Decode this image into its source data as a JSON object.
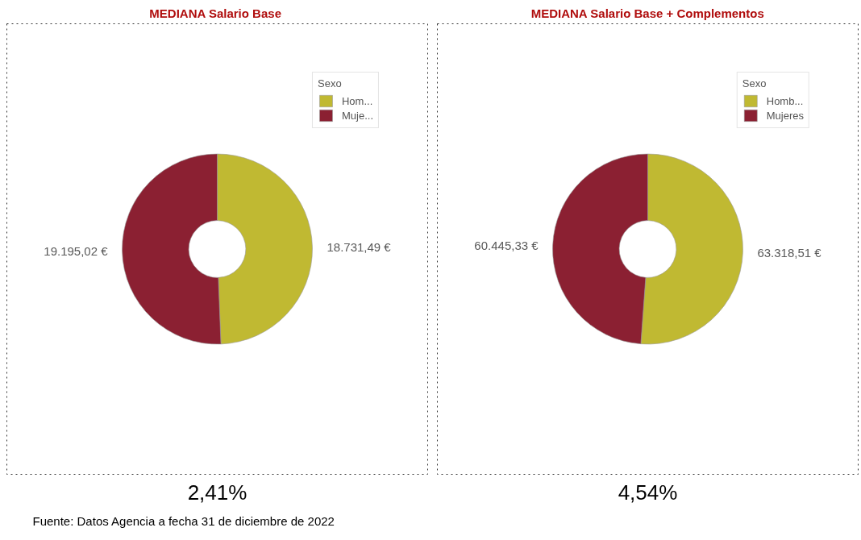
{
  "chart_data": [
    {
      "type": "donut",
      "title": "MEDIANA  Salario Base",
      "categories": [
        "Hom...",
        "Muje..."
      ],
      "values": [
        18731.49,
        19195.02
      ],
      "colors": [
        "#c0b932",
        "#8b2032"
      ],
      "value_labels": [
        "18.731,49 €",
        "19.195,02 €"
      ],
      "legend_title": "Sexo",
      "legend": "top right",
      "annotations": [
        "2,41%",
        "Fuente: Datos Agencia a fecha 31 de diciembre de 2022"
      ]
    },
    {
      "type": "donut",
      "title": "MEDIANA Salario Base + Complementos",
      "categories": [
        "Homb...",
        "Mujeres"
      ],
      "values": [
        63318.51,
        60445.33
      ],
      "colors": [
        "#c0b932",
        "#8b2032"
      ],
      "value_labels": [
        "63.318,51 €",
        "60.445,33 €"
      ],
      "legend_title": "Sexo",
      "legend": "top right",
      "annotations": [
        "4,54%"
      ]
    }
  ]
}
